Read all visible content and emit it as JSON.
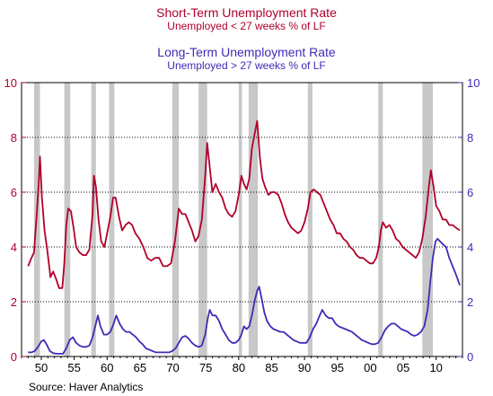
{
  "chart_data": {
    "type": "line",
    "titles": [
      {
        "title": "Short-Term Unemployment Rate",
        "subtitle": "Unemployed < 27 weeks % of LF",
        "color": "#b0002a"
      },
      {
        "title": "Long-Term Unemployment Rate",
        "subtitle": "Unemployed > 27 weeks % of LF",
        "color": "#3f2bb5"
      }
    ],
    "source": "Source: Haver Analytics",
    "x_range": [
      1947,
      2014
    ],
    "x_ticks": [
      {
        "v": 1950,
        "label": "50"
      },
      {
        "v": 1955,
        "label": "55"
      },
      {
        "v": 1960,
        "label": "60"
      },
      {
        "v": 1965,
        "label": "65"
      },
      {
        "v": 1970,
        "label": "70"
      },
      {
        "v": 1975,
        "label": "75"
      },
      {
        "v": 1980,
        "label": "80"
      },
      {
        "v": 1985,
        "label": "85"
      },
      {
        "v": 1990,
        "label": "90"
      },
      {
        "v": 1995,
        "label": "95"
      },
      {
        "v": 2000,
        "label": "00"
      },
      {
        "v": 2005,
        "label": "05"
      },
      {
        "v": 2010,
        "label": "10"
      }
    ],
    "ylim": [
      0,
      10
    ],
    "y_ticks_left": [
      "0",
      "2",
      "4",
      "6",
      "8",
      "10"
    ],
    "y_ticks_right": [
      "0",
      "2",
      "4",
      "6",
      "8",
      "10"
    ],
    "grid": "horizontal dotted at 2, 4, 6, 8",
    "recessions": [
      [
        1948.9,
        1949.8
      ],
      [
        1953.5,
        1954.4
      ],
      [
        1957.6,
        1958.3
      ],
      [
        1960.3,
        1961.1
      ],
      [
        1969.9,
        1970.9
      ],
      [
        1973.9,
        1975.2
      ],
      [
        1980.0,
        1980.5
      ],
      [
        1981.5,
        1982.9
      ],
      [
        1990.5,
        1991.2
      ],
      [
        2001.2,
        2001.9
      ],
      [
        2007.9,
        2009.5
      ]
    ],
    "series": [
      {
        "name": "Short-Term Unemployment Rate",
        "color": "#b0002a",
        "points": [
          [
            1948.0,
            3.3
          ],
          [
            1948.5,
            3.6
          ],
          [
            1948.9,
            3.8
          ],
          [
            1949.3,
            5.2
          ],
          [
            1949.6,
            6.3
          ],
          [
            1949.8,
            7.3
          ],
          [
            1950.1,
            5.8
          ],
          [
            1950.5,
            4.6
          ],
          [
            1950.9,
            3.9
          ],
          [
            1951.4,
            2.9
          ],
          [
            1951.8,
            3.1
          ],
          [
            1952.3,
            2.8
          ],
          [
            1952.7,
            2.5
          ],
          [
            1953.2,
            2.5
          ],
          [
            1953.5,
            3.4
          ],
          [
            1953.8,
            4.8
          ],
          [
            1954.1,
            5.4
          ],
          [
            1954.5,
            5.3
          ],
          [
            1954.9,
            4.7
          ],
          [
            1955.3,
            4.0
          ],
          [
            1955.8,
            3.8
          ],
          [
            1956.3,
            3.7
          ],
          [
            1956.8,
            3.7
          ],
          [
            1957.3,
            3.9
          ],
          [
            1957.8,
            5.2
          ],
          [
            1958.0,
            6.6
          ],
          [
            1958.3,
            6.2
          ],
          [
            1958.7,
            5.0
          ],
          [
            1959.1,
            4.2
          ],
          [
            1959.6,
            4.0
          ],
          [
            1960.0,
            4.5
          ],
          [
            1960.5,
            5.1
          ],
          [
            1960.9,
            5.8
          ],
          [
            1961.3,
            5.8
          ],
          [
            1961.8,
            5.1
          ],
          [
            1962.3,
            4.6
          ],
          [
            1962.8,
            4.8
          ],
          [
            1963.3,
            4.9
          ],
          [
            1963.8,
            4.8
          ],
          [
            1964.3,
            4.5
          ],
          [
            1964.9,
            4.3
          ],
          [
            1965.5,
            4.0
          ],
          [
            1966.1,
            3.6
          ],
          [
            1966.7,
            3.5
          ],
          [
            1967.3,
            3.6
          ],
          [
            1967.9,
            3.6
          ],
          [
            1968.5,
            3.3
          ],
          [
            1969.1,
            3.3
          ],
          [
            1969.7,
            3.4
          ],
          [
            1970.3,
            4.2
          ],
          [
            1970.9,
            5.4
          ],
          [
            1971.4,
            5.2
          ],
          [
            1971.9,
            5.2
          ],
          [
            1972.4,
            4.9
          ],
          [
            1972.9,
            4.6
          ],
          [
            1973.4,
            4.2
          ],
          [
            1973.9,
            4.4
          ],
          [
            1974.4,
            5.0
          ],
          [
            1974.9,
            6.6
          ],
          [
            1975.2,
            7.8
          ],
          [
            1975.6,
            6.9
          ],
          [
            1976.0,
            6.0
          ],
          [
            1976.5,
            6.3
          ],
          [
            1977.0,
            6.0
          ],
          [
            1977.5,
            5.8
          ],
          [
            1978.0,
            5.4
          ],
          [
            1978.5,
            5.2
          ],
          [
            1979.0,
            5.1
          ],
          [
            1979.5,
            5.3
          ],
          [
            1980.0,
            5.9
          ],
          [
            1980.4,
            6.6
          ],
          [
            1980.8,
            6.3
          ],
          [
            1981.2,
            6.1
          ],
          [
            1981.6,
            6.5
          ],
          [
            1982.0,
            7.6
          ],
          [
            1982.4,
            8.1
          ],
          [
            1982.8,
            8.6
          ],
          [
            1983.2,
            7.3
          ],
          [
            1983.6,
            6.5
          ],
          [
            1984.0,
            6.2
          ],
          [
            1984.5,
            5.9
          ],
          [
            1985.0,
            6.0
          ],
          [
            1985.5,
            6.0
          ],
          [
            1986.0,
            5.9
          ],
          [
            1986.5,
            5.6
          ],
          [
            1987.0,
            5.2
          ],
          [
            1987.5,
            4.9
          ],
          [
            1988.0,
            4.7
          ],
          [
            1988.5,
            4.6
          ],
          [
            1989.0,
            4.5
          ],
          [
            1989.5,
            4.6
          ],
          [
            1990.0,
            4.9
          ],
          [
            1990.5,
            5.4
          ],
          [
            1990.9,
            6.0
          ],
          [
            1991.4,
            6.1
          ],
          [
            1991.9,
            6.0
          ],
          [
            1992.4,
            5.9
          ],
          [
            1992.9,
            5.6
          ],
          [
            1993.4,
            5.3
          ],
          [
            1993.9,
            5.0
          ],
          [
            1994.4,
            4.8
          ],
          [
            1994.9,
            4.5
          ],
          [
            1995.4,
            4.5
          ],
          [
            1995.9,
            4.3
          ],
          [
            1996.4,
            4.2
          ],
          [
            1996.9,
            4.0
          ],
          [
            1997.4,
            3.9
          ],
          [
            1997.9,
            3.7
          ],
          [
            1998.4,
            3.6
          ],
          [
            1998.9,
            3.6
          ],
          [
            1999.4,
            3.5
          ],
          [
            1999.9,
            3.4
          ],
          [
            2000.4,
            3.4
          ],
          [
            2000.9,
            3.6
          ],
          [
            2001.3,
            4.0
          ],
          [
            2001.6,
            4.6
          ],
          [
            2001.9,
            4.9
          ],
          [
            2002.4,
            4.7
          ],
          [
            2002.9,
            4.8
          ],
          [
            2003.4,
            4.6
          ],
          [
            2003.9,
            4.3
          ],
          [
            2004.4,
            4.2
          ],
          [
            2004.9,
            4.0
          ],
          [
            2005.4,
            3.9
          ],
          [
            2005.9,
            3.8
          ],
          [
            2006.4,
            3.7
          ],
          [
            2006.9,
            3.6
          ],
          [
            2007.4,
            3.8
          ],
          [
            2007.9,
            4.3
          ],
          [
            2008.4,
            5.1
          ],
          [
            2008.9,
            6.2
          ],
          [
            2009.2,
            6.8
          ],
          [
            2009.6,
            6.2
          ],
          [
            2010.0,
            5.5
          ],
          [
            2010.5,
            5.3
          ],
          [
            2011.0,
            5.0
          ],
          [
            2011.5,
            5.0
          ],
          [
            2012.0,
            4.8
          ],
          [
            2012.5,
            4.8
          ],
          [
            2013.0,
            4.7
          ],
          [
            2013.6,
            4.6
          ]
        ]
      },
      {
        "name": "Long-Term Unemployment Rate",
        "color": "#3f2bb5",
        "points": [
          [
            1948.0,
            0.15
          ],
          [
            1948.5,
            0.15
          ],
          [
            1949.0,
            0.2
          ],
          [
            1949.5,
            0.35
          ],
          [
            1950.0,
            0.55
          ],
          [
            1950.4,
            0.6
          ],
          [
            1950.8,
            0.45
          ],
          [
            1951.3,
            0.2
          ],
          [
            1951.8,
            0.12
          ],
          [
            1952.3,
            0.1
          ],
          [
            1952.8,
            0.1
          ],
          [
            1953.3,
            0.1
          ],
          [
            1953.8,
            0.3
          ],
          [
            1954.3,
            0.6
          ],
          [
            1954.8,
            0.7
          ],
          [
            1955.3,
            0.5
          ],
          [
            1955.8,
            0.4
          ],
          [
            1956.3,
            0.35
          ],
          [
            1956.8,
            0.35
          ],
          [
            1957.3,
            0.4
          ],
          [
            1957.8,
            0.7
          ],
          [
            1958.3,
            1.2
          ],
          [
            1958.6,
            1.5
          ],
          [
            1959.0,
            1.1
          ],
          [
            1959.5,
            0.8
          ],
          [
            1960.0,
            0.8
          ],
          [
            1960.5,
            0.9
          ],
          [
            1961.0,
            1.2
          ],
          [
            1961.4,
            1.5
          ],
          [
            1961.9,
            1.2
          ],
          [
            1962.4,
            1.0
          ],
          [
            1962.9,
            0.9
          ],
          [
            1963.4,
            0.9
          ],
          [
            1963.9,
            0.8
          ],
          [
            1964.4,
            0.7
          ],
          [
            1964.9,
            0.55
          ],
          [
            1965.4,
            0.45
          ],
          [
            1965.9,
            0.3
          ],
          [
            1966.4,
            0.25
          ],
          [
            1966.9,
            0.2
          ],
          [
            1967.4,
            0.15
          ],
          [
            1967.9,
            0.15
          ],
          [
            1968.4,
            0.15
          ],
          [
            1968.9,
            0.15
          ],
          [
            1969.4,
            0.15
          ],
          [
            1969.9,
            0.2
          ],
          [
            1970.4,
            0.3
          ],
          [
            1970.9,
            0.5
          ],
          [
            1971.4,
            0.7
          ],
          [
            1971.9,
            0.75
          ],
          [
            1972.4,
            0.65
          ],
          [
            1972.9,
            0.5
          ],
          [
            1973.4,
            0.4
          ],
          [
            1973.9,
            0.35
          ],
          [
            1974.4,
            0.4
          ],
          [
            1974.9,
            0.8
          ],
          [
            1975.3,
            1.4
          ],
          [
            1975.6,
            1.7
          ],
          [
            1976.0,
            1.5
          ],
          [
            1976.5,
            1.5
          ],
          [
            1977.0,
            1.3
          ],
          [
            1977.5,
            1.0
          ],
          [
            1978.0,
            0.8
          ],
          [
            1978.5,
            0.6
          ],
          [
            1979.0,
            0.5
          ],
          [
            1979.5,
            0.5
          ],
          [
            1980.0,
            0.6
          ],
          [
            1980.4,
            0.8
          ],
          [
            1980.8,
            1.1
          ],
          [
            1981.2,
            1.0
          ],
          [
            1981.6,
            1.1
          ],
          [
            1982.0,
            1.5
          ],
          [
            1982.4,
            2.0
          ],
          [
            1982.8,
            2.4
          ],
          [
            1983.1,
            2.55
          ],
          [
            1983.5,
            2.1
          ],
          [
            1983.9,
            1.6
          ],
          [
            1984.3,
            1.3
          ],
          [
            1984.8,
            1.1
          ],
          [
            1985.3,
            1.0
          ],
          [
            1985.8,
            0.95
          ],
          [
            1986.3,
            0.9
          ],
          [
            1986.8,
            0.9
          ],
          [
            1987.3,
            0.8
          ],
          [
            1987.8,
            0.7
          ],
          [
            1988.3,
            0.6
          ],
          [
            1988.8,
            0.55
          ],
          [
            1989.3,
            0.5
          ],
          [
            1989.8,
            0.5
          ],
          [
            1990.3,
            0.5
          ],
          [
            1990.8,
            0.7
          ],
          [
            1991.3,
            1.0
          ],
          [
            1991.8,
            1.2
          ],
          [
            1992.3,
            1.5
          ],
          [
            1992.7,
            1.7
          ],
          [
            1993.2,
            1.5
          ],
          [
            1993.7,
            1.4
          ],
          [
            1994.2,
            1.4
          ],
          [
            1994.7,
            1.2
          ],
          [
            1995.2,
            1.1
          ],
          [
            1995.7,
            1.05
          ],
          [
            1996.2,
            1.0
          ],
          [
            1996.7,
            0.95
          ],
          [
            1997.2,
            0.9
          ],
          [
            1997.7,
            0.8
          ],
          [
            1998.2,
            0.7
          ],
          [
            1998.7,
            0.6
          ],
          [
            1999.2,
            0.55
          ],
          [
            1999.7,
            0.5
          ],
          [
            2000.2,
            0.45
          ],
          [
            2000.7,
            0.45
          ],
          [
            2001.2,
            0.5
          ],
          [
            2001.7,
            0.7
          ],
          [
            2002.2,
            0.95
          ],
          [
            2002.7,
            1.1
          ],
          [
            2003.2,
            1.2
          ],
          [
            2003.7,
            1.2
          ],
          [
            2004.2,
            1.1
          ],
          [
            2004.7,
            1.0
          ],
          [
            2005.2,
            0.95
          ],
          [
            2005.7,
            0.9
          ],
          [
            2006.2,
            0.8
          ],
          [
            2006.7,
            0.75
          ],
          [
            2007.2,
            0.8
          ],
          [
            2007.7,
            0.9
          ],
          [
            2008.2,
            1.1
          ],
          [
            2008.7,
            1.7
          ],
          [
            2009.1,
            2.7
          ],
          [
            2009.5,
            3.6
          ],
          [
            2009.9,
            4.2
          ],
          [
            2010.2,
            4.3
          ],
          [
            2010.6,
            4.2
          ],
          [
            2011.0,
            4.1
          ],
          [
            2011.5,
            4.0
          ],
          [
            2012.0,
            3.6
          ],
          [
            2012.5,
            3.3
          ],
          [
            2013.0,
            3.0
          ],
          [
            2013.6,
            2.6
          ]
        ]
      }
    ]
  }
}
